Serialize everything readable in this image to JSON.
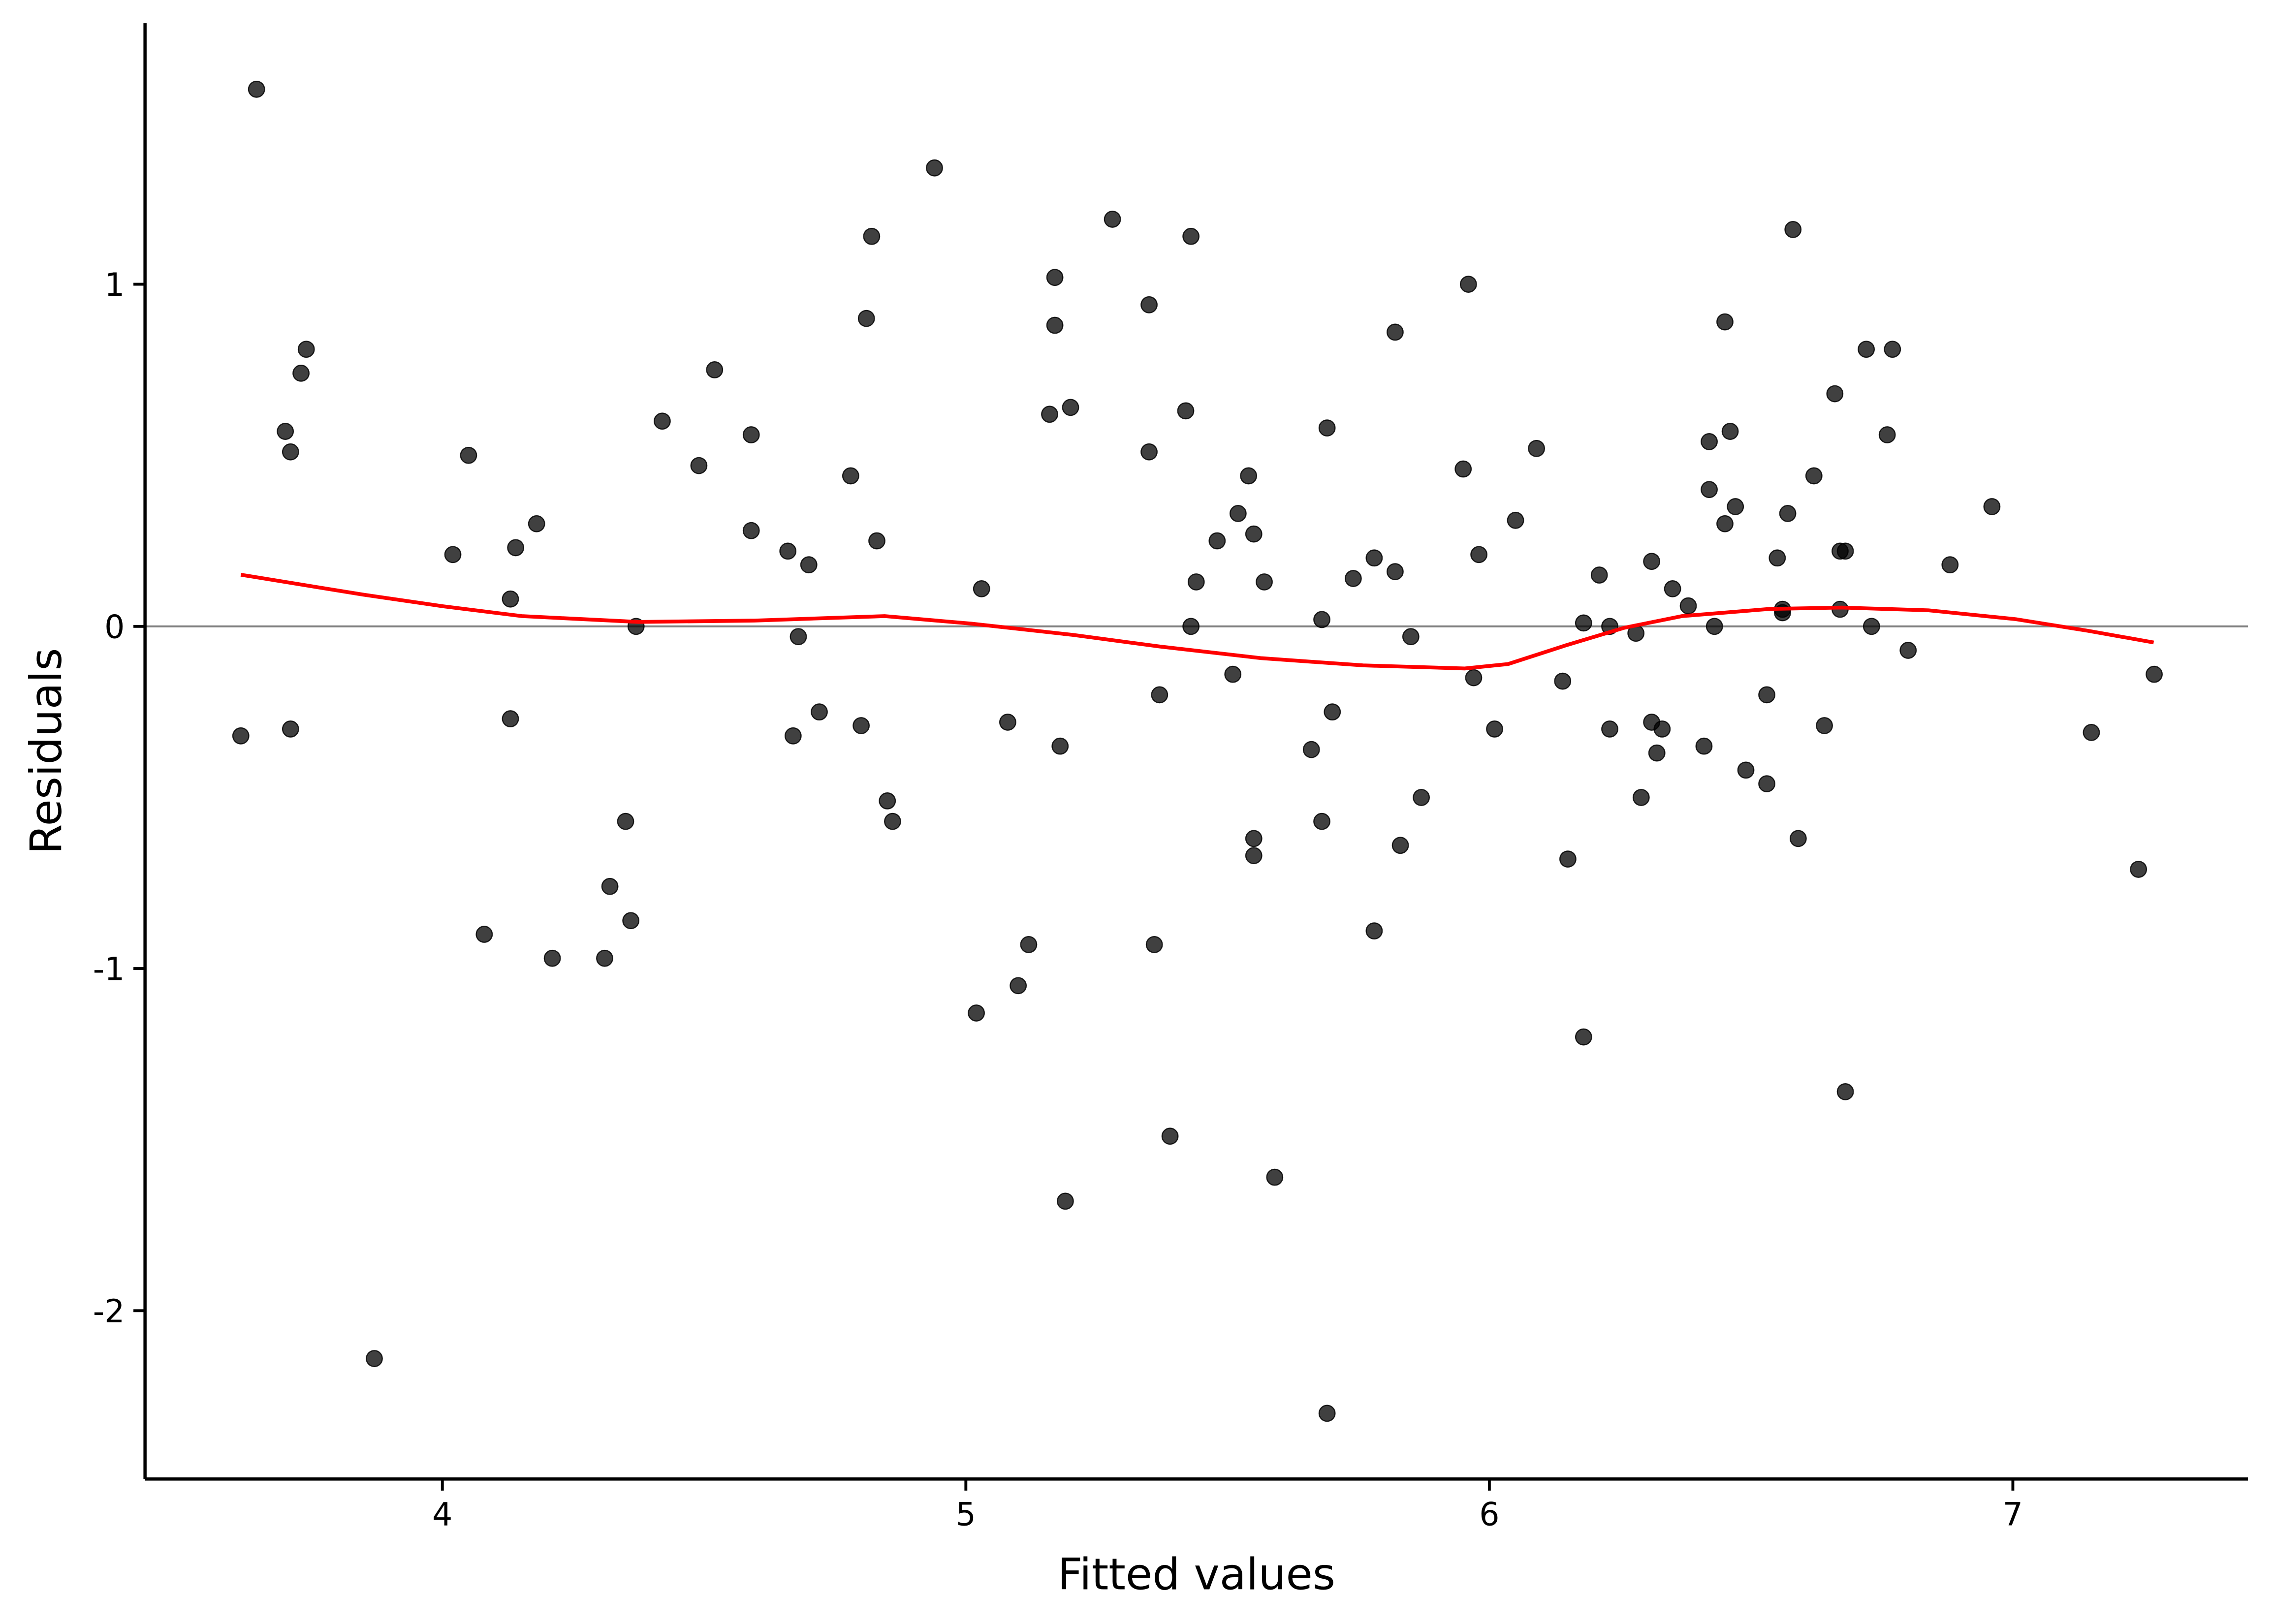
{
  "chart_data": {
    "type": "scatter",
    "x_label": "Fitted values",
    "y_label": "Residuals",
    "xlim": [
      3.432,
      7.449
    ],
    "ylim": [
      -2.492,
      1.763
    ],
    "xticks": [
      4,
      5,
      6,
      7
    ],
    "yticks": [
      -2,
      -1,
      0,
      1
    ],
    "hline": 0,
    "hline_color": "#808080",
    "points": {
      "color": "#000000",
      "x": [
        3.615,
        3.645,
        3.7,
        3.71,
        3.71,
        3.73,
        3.74,
        3.87,
        4.02,
        4.05,
        4.08,
        4.13,
        4.13,
        4.14,
        4.18,
        4.21,
        4.31,
        4.32,
        4.35,
        4.36,
        4.37,
        4.42,
        4.49,
        4.52,
        4.59,
        4.59,
        4.66,
        4.67,
        4.68,
        4.7,
        4.72,
        4.78,
        4.8,
        4.81,
        4.82,
        4.83,
        4.85,
        4.86,
        4.94,
        5.02,
        5.03,
        5.08,
        5.1,
        5.12,
        5.16,
        5.17,
        5.17,
        5.18,
        5.19,
        5.2,
        5.28,
        5.35,
        5.35,
        5.36,
        5.37,
        5.39,
        5.42,
        5.43,
        5.43,
        5.44,
        5.48,
        5.51,
        5.52,
        5.54,
        5.55,
        5.55,
        5.55,
        5.57,
        5.59,
        5.66,
        5.68,
        5.68,
        5.69,
        5.69,
        5.7,
        5.74,
        5.78,
        5.78,
        5.82,
        5.82,
        5.83,
        5.85,
        5.87,
        5.95,
        5.96,
        5.97,
        5.98,
        6.01,
        6.05,
        6.09,
        6.14,
        6.15,
        6.18,
        6.18,
        6.21,
        6.23,
        6.23,
        6.28,
        6.29,
        6.31,
        6.31,
        6.32,
        6.33,
        6.35,
        6.38,
        6.41,
        6.42,
        6.42,
        6.43,
        6.45,
        6.45,
        6.46,
        6.47,
        6.49,
        6.53,
        6.53,
        6.55,
        6.56,
        6.56,
        6.57,
        6.58,
        6.59,
        6.62,
        6.64,
        6.66,
        6.67,
        6.67,
        6.68,
        6.68,
        6.72,
        6.73,
        6.76,
        6.77,
        6.8,
        6.88,
        6.96,
        7.15,
        7.24,
        7.27
      ],
      "y": [
        -0.32,
        1.57,
        0.57,
        0.51,
        -0.3,
        0.74,
        0.81,
        -2.14,
        0.21,
        0.5,
        -0.9,
        -0.27,
        0.08,
        0.23,
        0.3,
        -0.97,
        -0.97,
        -0.76,
        -0.57,
        -0.86,
        0.0,
        0.6,
        0.47,
        0.75,
        0.56,
        0.28,
        0.22,
        -0.32,
        -0.03,
        0.18,
        -0.25,
        0.44,
        -0.29,
        0.9,
        1.14,
        0.25,
        -0.51,
        -0.57,
        1.34,
        -1.13,
        0.11,
        -0.28,
        -1.05,
        -0.93,
        0.62,
        0.88,
        1.02,
        -0.35,
        -1.68,
        0.64,
        1.19,
        0.94,
        0.51,
        -0.93,
        -0.2,
        -1.49,
        0.63,
        1.14,
        0.0,
        0.13,
        0.25,
        -0.14,
        0.33,
        0.44,
        0.27,
        -0.62,
        -0.67,
        0.13,
        -1.61,
        -0.36,
        0.02,
        -0.57,
        -2.3,
        0.58,
        -0.25,
        0.14,
        0.2,
        -0.89,
        0.16,
        0.86,
        -0.64,
        -0.03,
        -0.5,
        0.46,
        1.0,
        -0.15,
        0.21,
        -0.3,
        0.31,
        0.52,
        -0.16,
        -0.68,
        -1.2,
        0.01,
        0.15,
        -0.3,
        0.0,
        -0.02,
        -0.5,
        -0.28,
        0.19,
        -0.37,
        -0.3,
        0.11,
        0.06,
        -0.35,
        0.54,
        0.4,
        0.0,
        0.3,
        0.89,
        0.57,
        0.35,
        -0.42,
        -0.2,
        -0.46,
        0.2,
        0.05,
        0.04,
        0.33,
        1.16,
        -0.62,
        0.44,
        -0.29,
        0.68,
        0.05,
        0.22,
        -1.36,
        0.22,
        0.81,
        0.0,
        0.56,
        0.81,
        -0.07,
        0.18,
        0.35,
        -0.31,
        -0.71,
        -0.14
      ]
    },
    "smooth": {
      "color": "#ff0000",
      "x": [
        3.615,
        3.848,
        4.0,
        4.152,
        4.374,
        4.596,
        4.845,
        5.011,
        5.205,
        5.371,
        5.565,
        5.759,
        5.953,
        6.036,
        6.147,
        6.258,
        6.368,
        6.535,
        6.673,
        6.839,
        7.006,
        7.144,
        7.269
      ],
      "y": [
        0.151,
        0.093,
        0.059,
        0.03,
        0.013,
        0.017,
        0.03,
        0.008,
        -0.025,
        -0.059,
        -0.093,
        -0.114,
        -0.123,
        -0.11,
        -0.055,
        -0.004,
        0.03,
        0.051,
        0.055,
        0.047,
        0.021,
        -0.013,
        -0.047
      ]
    }
  }
}
